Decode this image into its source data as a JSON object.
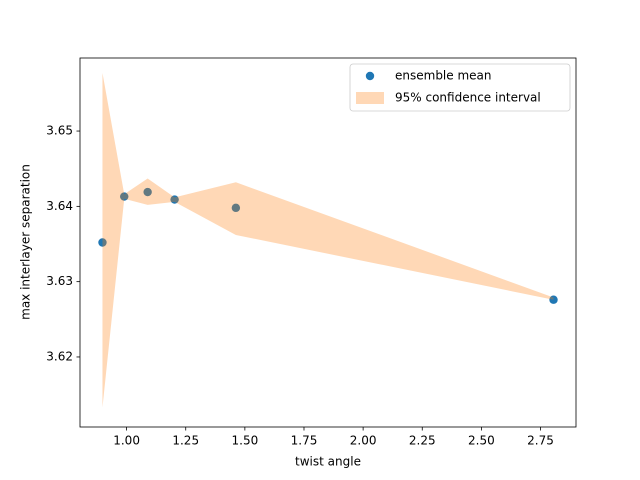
{
  "chart_data": {
    "type": "scatter",
    "xlabel": "twist angle",
    "ylabel": "max interlayer separation",
    "x": [
      0.898,
      0.99,
      1.089,
      1.203,
      1.462,
      2.805
    ],
    "series": [
      {
        "name": "ensemble mean",
        "color": "#1f77b4",
        "values": [
          3.6352,
          3.6413,
          3.6419,
          3.6409,
          3.6398,
          3.6276
        ]
      }
    ],
    "band": {
      "name": "95% confidence interval",
      "color": "#ff7f0e",
      "alpha": 0.3,
      "upper": [
        3.6577,
        3.6416,
        3.6437,
        3.6412,
        3.6432,
        3.6279
      ],
      "lower": [
        3.6133,
        3.641,
        3.6402,
        3.6406,
        3.6362,
        3.6276
      ]
    },
    "xlim": [
      0.803,
      2.9
    ],
    "ylim": [
      3.6107,
      3.6597
    ],
    "xticks": [
      {
        "value": 1,
        "label": "1.00"
      },
      {
        "value": 1.25,
        "label": "1.25"
      },
      {
        "value": 1.5,
        "label": "1.50"
      },
      {
        "value": 1.75,
        "label": "1.75"
      },
      {
        "value": 2,
        "label": "2.00"
      },
      {
        "value": 2.25,
        "label": "2.25"
      },
      {
        "value": 2.5,
        "label": "2.50"
      },
      {
        "value": 2.75,
        "label": "2.75"
      }
    ],
    "yticks": [
      3.62,
      3.63,
      3.64,
      3.65
    ],
    "legend": "upper right"
  }
}
